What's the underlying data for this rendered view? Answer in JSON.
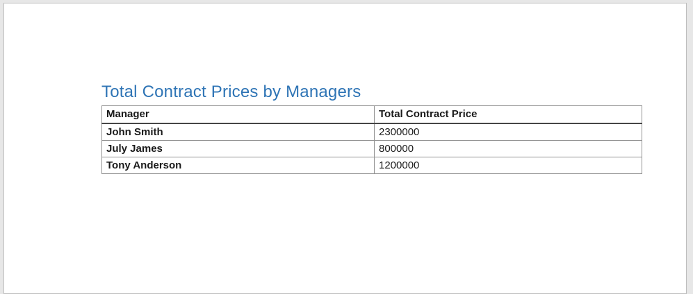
{
  "document": {
    "heading": "Total Contract Prices by Managers"
  },
  "table": {
    "columns": [
      "Manager",
      "Total Contract Price"
    ],
    "rows": [
      {
        "manager": "John Smith",
        "price": "2300000"
      },
      {
        "manager": "July James",
        "price": "800000"
      },
      {
        "manager": "Tony Anderson",
        "price": "1200000"
      }
    ]
  },
  "colors": {
    "heading_text": "#2E74B5",
    "table_border": "#919191",
    "header_underline": "#454545",
    "canvas_background": "#e7e7e7",
    "page_border": "#bdbdbd",
    "page_background": "#ffffff"
  }
}
